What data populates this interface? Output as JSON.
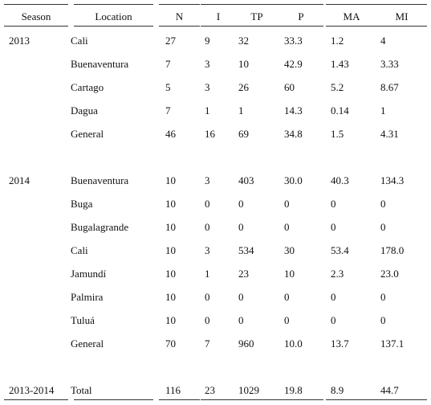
{
  "columns": [
    "Season",
    "Location",
    "N",
    "I",
    "TP",
    "P",
    "MA",
    "MI"
  ],
  "rows": [
    {
      "season": "2013",
      "cells": [
        "Cali",
        "27",
        "9",
        "32",
        "33.3",
        "1.2",
        "4"
      ]
    },
    {
      "season": "",
      "cells": [
        "Buenaventura",
        "7",
        "3",
        "10",
        "42.9",
        "1.43",
        "3.33"
      ]
    },
    {
      "season": "",
      "cells": [
        "Cartago",
        "5",
        "3",
        "26",
        "60",
        "5.2",
        "8.67"
      ]
    },
    {
      "season": "",
      "cells": [
        "Dagua",
        "7",
        "1",
        "1",
        "14.3",
        "0.14",
        "1"
      ]
    },
    {
      "season": "",
      "cells": [
        "General",
        "46",
        "16",
        "69",
        "34.8",
        "1.5",
        "4.31"
      ]
    },
    {
      "season": "2014",
      "cells": [
        "Buenaventura",
        "10",
        "3",
        "403",
        "30.0",
        "40.3",
        "134.3"
      ]
    },
    {
      "season": "",
      "cells": [
        "Buga",
        "10",
        "0",
        "0",
        "0",
        "0",
        "0"
      ]
    },
    {
      "season": "",
      "cells": [
        "Bugalagrande",
        "10",
        "0",
        "0",
        "0",
        "0",
        "0"
      ]
    },
    {
      "season": "",
      "cells": [
        "Cali",
        "10",
        "3",
        "534",
        "30",
        "53.4",
        "178.0"
      ]
    },
    {
      "season": "",
      "cells": [
        "Jamundí",
        "10",
        "1",
        "23",
        "10",
        "2.3",
        "23.0"
      ]
    },
    {
      "season": "",
      "cells": [
        "Palmira",
        "10",
        "0",
        "0",
        "0",
        "0",
        "0"
      ]
    },
    {
      "season": "",
      "cells": [
        "Tuluá",
        "10",
        "0",
        "0",
        "0",
        "0",
        "0"
      ]
    },
    {
      "season": "",
      "cells": [
        "General",
        "70",
        "7",
        "960",
        "10.0",
        "13.7",
        "137.1"
      ]
    },
    {
      "season": "2013-2014",
      "cells": [
        "Total",
        "116",
        "23",
        "1029",
        "19.8",
        "8.9",
        "44.7"
      ]
    }
  ]
}
